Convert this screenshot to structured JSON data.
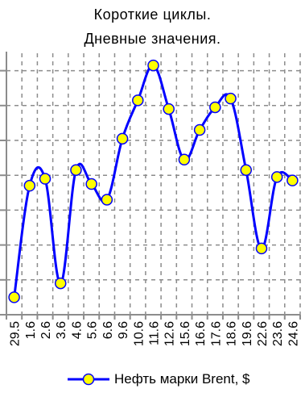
{
  "chart_data": {
    "type": "line",
    "title": "Короткие циклы.",
    "subtitle": "Дневные значения.",
    "xlabel": "",
    "ylabel": "",
    "categories": [
      "29.5",
      "1.6",
      "2.6",
      "3.6",
      "4.6",
      "5.6",
      "6.6",
      "9.6",
      "10.6",
      "11.6",
      "12.6",
      "15.6",
      "16.6",
      "17.6",
      "18.6",
      "19.6",
      "22.6",
      "23.6",
      "24.6"
    ],
    "series": [
      {
        "name": "Нефть марки Brent, $",
        "values": [
          0.5,
          3.7,
          3.9,
          0.9,
          4.15,
          3.75,
          3.3,
          5.05,
          6.15,
          7.15,
          5.9,
          4.45,
          5.3,
          5.95,
          6.2,
          4.15,
          1.9,
          3.95,
          3.85
        ],
        "color": "#0000ff",
        "marker_color": "#ffff00"
      }
    ],
    "ylim": [
      0,
      7.5
    ],
    "y_gridlines": [
      1,
      2,
      3,
      4,
      5,
      6,
      7
    ],
    "y_tick_labels_shown": false,
    "grid": "dashed",
    "smooth": true,
    "legend_position": "bottom"
  }
}
